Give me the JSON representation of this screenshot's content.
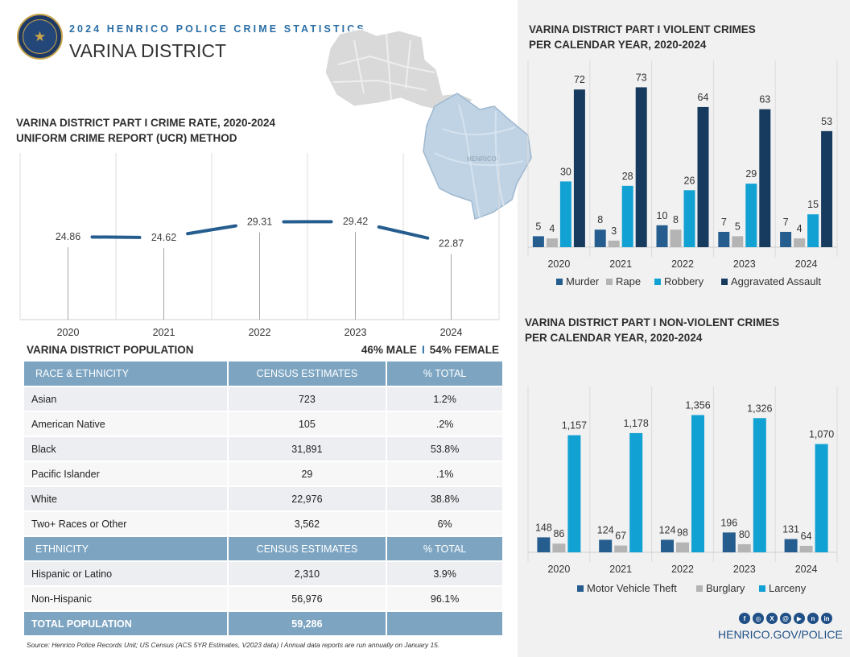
{
  "header": {
    "kicker": "2024 HENRICO POLICE CRIME STATISTICS",
    "title": "VARINA DISTRICT",
    "map_label": "HENRICO"
  },
  "colors": {
    "murder": "#255d8f",
    "rape": "#b4b4b4",
    "robbery": "#12a1d3",
    "aggravated_assault": "#173b5f",
    "motor_vehicle_theft": "#255d8f",
    "burglary": "#b4b4b4",
    "larceny": "#12a1d3",
    "rate_line": "#255d8f",
    "table_header": "#7da5c2"
  },
  "rate_chart": {
    "title_line1": "VARINA DISTRICT PART I CRIME RATE, 2020-2024",
    "title_line2": "UNIFORM CRIME REPORT (UCR) METHOD"
  },
  "violent_chart": {
    "title_line1": "VARINA DISTRICT PART I VIOLENT CRIMES",
    "title_line2": "PER CALENDAR YEAR, 2020-2024"
  },
  "nonviolent_chart": {
    "title_line1": "VARINA DISTRICT PART I NON-VIOLENT CRIMES",
    "title_line2": "PER CALENDAR YEAR, 2020-2024"
  },
  "population": {
    "title": "VARINA DISTRICT POPULATION",
    "male": "46% MALE",
    "separator": "I",
    "female": "54% FEMALE",
    "race_header": [
      "RACE & ETHNICITY",
      "CENSUS ESTIMATES",
      "% TOTAL"
    ],
    "race_rows": [
      [
        "Asian",
        "723",
        "1.2%"
      ],
      [
        "American Native",
        "105",
        ".2%"
      ],
      [
        "Black",
        "31,891",
        "53.8%"
      ],
      [
        "Pacific Islander",
        "29",
        ".1%"
      ],
      [
        "White",
        "22,976",
        "38.8%"
      ],
      [
        "Two+ Races or Other",
        "3,562",
        "6%"
      ]
    ],
    "ethnicity_header": [
      "ETHNICITY",
      "CENSUS ESTIMATES",
      "% TOTAL"
    ],
    "ethnicity_rows": [
      [
        "Hispanic or Latino",
        "2,310",
        "3.9%"
      ],
      [
        "Non-Hispanic",
        "56,976",
        "96.1%"
      ]
    ],
    "total_row": [
      "TOTAL POPULATION",
      "59,286",
      ""
    ]
  },
  "footer": {
    "source": "Source: Henrico Police Records Unit; US Census (ACS 5YR Estimates, V2023 data) I Annual data reports are run annually on January 15.",
    "social_icons": [
      "facebook-icon",
      "instagram-icon",
      "x-icon",
      "threads-icon",
      "youtube-icon",
      "nextdoor-icon",
      "linkedin-icon"
    ],
    "social_glyphs": [
      "f",
      "◎",
      "X",
      "@",
      "▶",
      "n",
      "in"
    ],
    "website": "HENRICO.GOV/POLICE"
  },
  "chart_data": [
    {
      "type": "line",
      "x": [
        "2020",
        "2021",
        "2022",
        "2023",
        "2024"
      ],
      "values": [
        24.86,
        24.62,
        29.31,
        29.42,
        22.87
      ],
      "value_labels": [
        "24.86",
        "24.62",
        "29.31",
        "29.42",
        "22.87"
      ],
      "title": "VARINA DISTRICT PART I CRIME RATE, 2020-2024",
      "subtitle": "UNIFORM CRIME REPORT (UCR) METHOD",
      "ylim": [
        0,
        50
      ],
      "grid": "vertical"
    },
    {
      "type": "bar",
      "categories": [
        "2020",
        "2021",
        "2022",
        "2023",
        "2024"
      ],
      "series": [
        {
          "name": "Murder",
          "values": [
            5,
            8,
            10,
            7,
            7
          ]
        },
        {
          "name": "Rape",
          "values": [
            4,
            3,
            8,
            5,
            4
          ]
        },
        {
          "name": "Robbery",
          "values": [
            30,
            28,
            26,
            29,
            15
          ]
        },
        {
          "name": "Aggravated Assault",
          "values": [
            72,
            73,
            64,
            63,
            53
          ]
        }
      ],
      "title": "VARINA DISTRICT PART I VIOLENT CRIMES",
      "subtitle": "PER CALENDAR YEAR, 2020-2024",
      "ylim": [
        0,
        75
      ],
      "legend": "bottom"
    },
    {
      "type": "bar",
      "categories": [
        "2020",
        "2021",
        "2022",
        "2023",
        "2024"
      ],
      "series": [
        {
          "name": "Motor Vehicle Theft",
          "values": [
            148,
            124,
            124,
            196,
            131
          ],
          "labels": [
            "148",
            "124",
            "124",
            "196",
            "131"
          ]
        },
        {
          "name": "Burglary",
          "values": [
            86,
            67,
            98,
            80,
            64
          ],
          "labels": [
            "86",
            "67",
            "98",
            "80",
            "64"
          ]
        },
        {
          "name": "Larceny",
          "values": [
            1157,
            1178,
            1356,
            1326,
            1070
          ],
          "labels": [
            "1,157",
            "1,178",
            "1,356",
            "1,326",
            "1,070"
          ]
        }
      ],
      "title": "VARINA DISTRICT PART I NON-VIOLENT CRIMES",
      "subtitle": "PER CALENDAR YEAR, 2020-2024",
      "ylim": [
        0,
        1400
      ],
      "legend": "bottom"
    }
  ]
}
